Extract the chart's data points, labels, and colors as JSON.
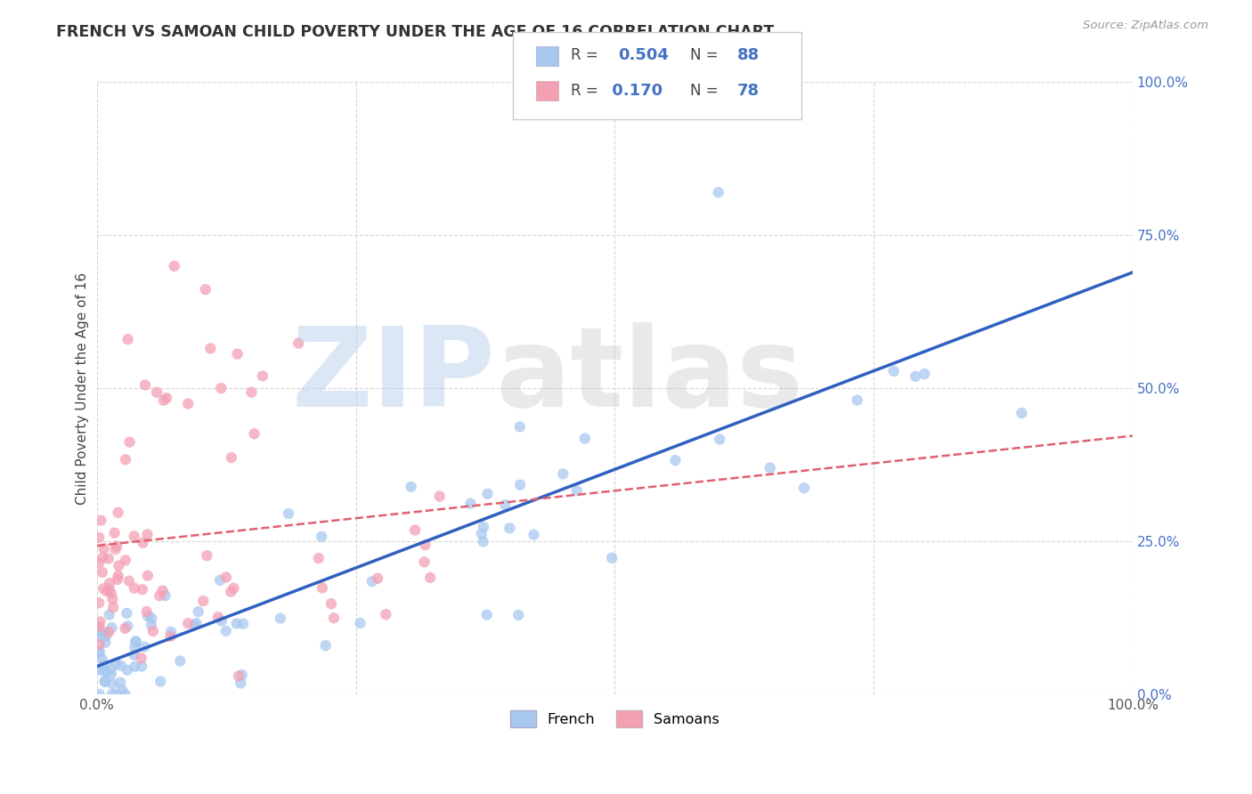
{
  "title": "FRENCH VS SAMOAN CHILD POVERTY UNDER THE AGE OF 16 CORRELATION CHART",
  "source": "Source: ZipAtlas.com",
  "ylabel": "Child Poverty Under the Age of 16",
  "french_R": 0.504,
  "french_N": 88,
  "samoan_R": 0.17,
  "samoan_N": 78,
  "french_color": "#A8C8F0",
  "samoan_color": "#F4A0B4",
  "french_line_color": "#3060C0",
  "samoan_line_color": "#E06070",
  "background_color": "#FFFFFF",
  "grid_color": "#CCCCCC",
  "watermark_zip_color": "#B8D0EC",
  "watermark_atlas_color": "#C8C8C8",
  "tick_label_color": "#4472C4",
  "xlim": [
    0.0,
    1.0
  ],
  "ylim": [
    0.0,
    1.0
  ]
}
